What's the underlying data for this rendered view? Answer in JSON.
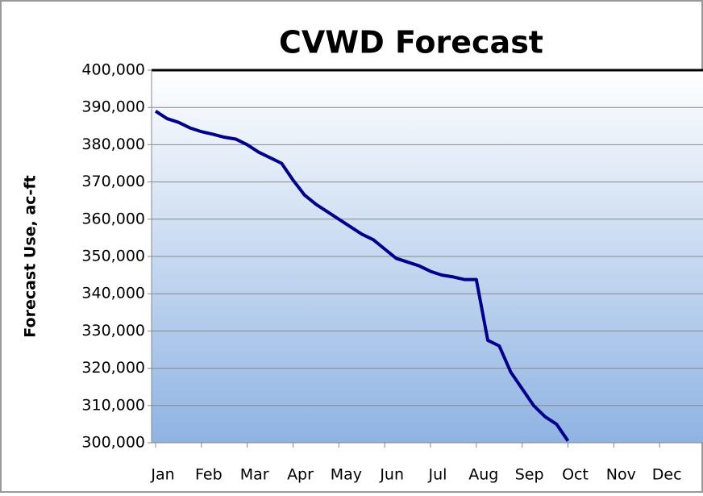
{
  "chart_data": {
    "type": "line",
    "title": "CVWD Forecast",
    "y_label": "Forecast Use, ac-ft",
    "categories": [
      "Jan",
      null,
      null,
      null,
      "Feb",
      null,
      null,
      null,
      "Mar",
      null,
      null,
      null,
      "Apr",
      null,
      null,
      null,
      "May",
      null,
      null,
      null,
      "Jun",
      null,
      null,
      null,
      "Jul",
      null,
      null,
      null,
      "Aug",
      null,
      null,
      null,
      "Sep",
      null,
      null,
      null,
      "Oct",
      null,
      null,
      null,
      "Nov",
      null,
      null,
      null,
      "Dec",
      null,
      null,
      null
    ],
    "series": [
      {
        "name": "Forecast Use",
        "color": "#00008b",
        "values": [
          389000,
          387000,
          386000,
          384500,
          383500,
          382800,
          382000,
          381500,
          380000,
          378000,
          376500,
          375000,
          370500,
          366500,
          364000,
          362000,
          360000,
          358000,
          356000,
          354500,
          352000,
          349500,
          348500,
          347500,
          346000,
          345000,
          344500,
          343800,
          343800,
          327500,
          326000,
          319000,
          314500,
          310000,
          307000,
          305000,
          300500,
          null,
          null,
          null,
          null,
          null,
          null,
          null,
          null,
          null,
          null,
          null
        ]
      }
    ],
    "ylim": [
      300000,
      400000
    ],
    "yticks": [
      {
        "value": 300000,
        "label": "300,000"
      },
      {
        "value": 310000,
        "label": "310,000"
      },
      {
        "value": 320000,
        "label": "320,000"
      },
      {
        "value": 330000,
        "label": "330,000"
      },
      {
        "value": 340000,
        "label": "340,000"
      },
      {
        "value": 350000,
        "label": "350,000"
      },
      {
        "value": 360000,
        "label": "360,000"
      },
      {
        "value": 370000,
        "label": "370,000"
      },
      {
        "value": 380000,
        "label": "380,000"
      },
      {
        "value": 390000,
        "label": "390,000"
      },
      {
        "value": 400000,
        "label": "400,000"
      }
    ],
    "grid": true
  }
}
